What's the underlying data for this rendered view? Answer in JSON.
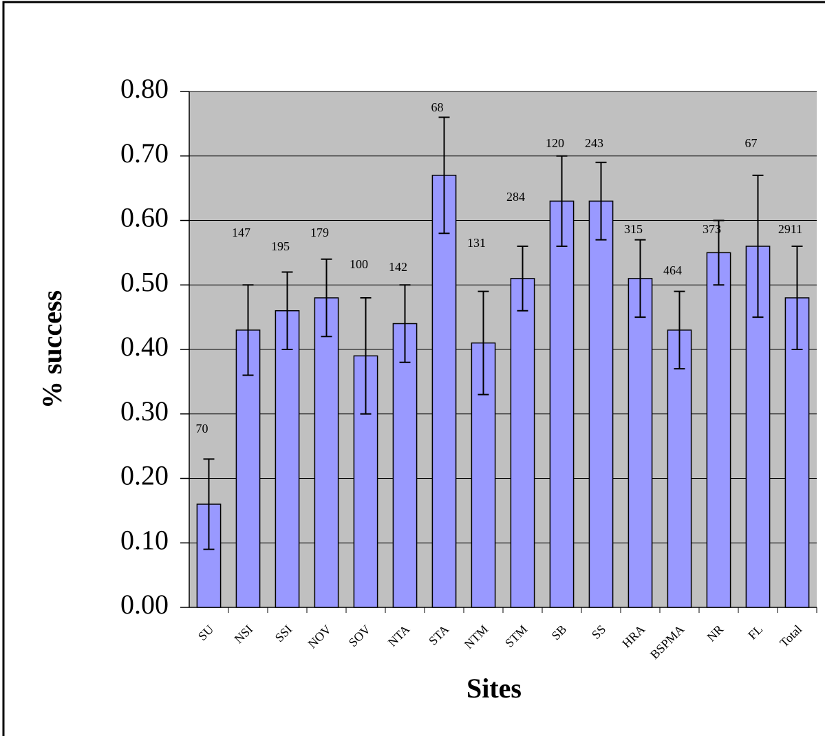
{
  "chart_data": {
    "type": "bar",
    "x_label": "Sites",
    "y_label": "% success",
    "categories": [
      "SU",
      "NSI",
      "SSI",
      "NOV",
      "SOV",
      "NTA",
      "STA",
      "NTM",
      "STM",
      "SB",
      "SS",
      "HRA",
      "BSPMA",
      "NR",
      "FL",
      "Total"
    ],
    "values": [
      0.16,
      0.43,
      0.46,
      0.48,
      0.39,
      0.44,
      0.67,
      0.41,
      0.51,
      0.63,
      0.63,
      0.51,
      0.43,
      0.55,
      0.56,
      0.48
    ],
    "errors": [
      0.07,
      0.07,
      0.06,
      0.06,
      0.09,
      0.06,
      0.09,
      0.08,
      0.05,
      0.07,
      0.06,
      0.06,
      0.06,
      0.05,
      0.11,
      0.08
    ],
    "sample_sizes": [
      70,
      147,
      195,
      179,
      100,
      142,
      68,
      131,
      284,
      120,
      243,
      315,
      464,
      373,
      67,
      2911
    ],
    "color": "#9999ff",
    "ylim": [
      0,
      0.8
    ],
    "yticks": [
      {
        "value": 0,
        "label": "0.00"
      },
      {
        "value": 0.1,
        "label": "0.10"
      },
      {
        "value": 0.2,
        "label": "0.20"
      },
      {
        "value": 0.3,
        "label": "0.30"
      },
      {
        "value": 0.4,
        "label": "0.40"
      },
      {
        "value": 0.5,
        "label": "0.50"
      },
      {
        "value": 0.6,
        "label": "0.60"
      },
      {
        "value": 0.7,
        "label": "0.70"
      },
      {
        "value": 0.8,
        "label": "0.80"
      }
    ],
    "grid": true
  }
}
